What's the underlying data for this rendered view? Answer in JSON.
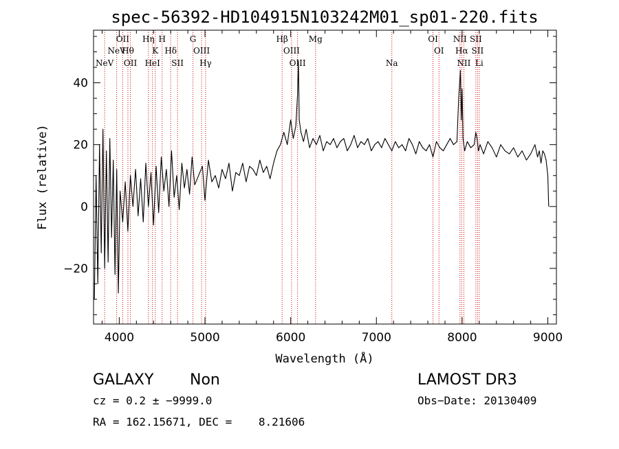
{
  "chart_data": {
    "type": "line",
    "title": "spec-56392-HD104915N103242M01_sp01-220.fits",
    "xlabel": "Wavelength (Å)",
    "ylabel": "Flux (relative)",
    "xlim": [
      3700,
      9100
    ],
    "ylim": [
      -38,
      57
    ],
    "xticks": [
      4000,
      5000,
      6000,
      7000,
      8000,
      9000
    ],
    "xtick_labels": [
      "4000",
      "5000",
      "6000",
      "7000",
      "8000",
      "9000"
    ],
    "yticks": [
      -20,
      0,
      20,
      40
    ],
    "ytick_labels": [
      "−20",
      "0",
      "20",
      "40"
    ],
    "line_color": "#000000",
    "marker_color": "#cc0000",
    "series": [
      {
        "name": "flux",
        "x": [
          3710,
          3730,
          3750,
          3770,
          3790,
          3810,
          3830,
          3850,
          3870,
          3890,
          3910,
          3930,
          3950,
          3970,
          3990,
          4010,
          4040,
          4070,
          4100,
          4130,
          4160,
          4190,
          4220,
          4250,
          4280,
          4310,
          4340,
          4370,
          4400,
          4430,
          4460,
          4490,
          4520,
          4550,
          4580,
          4610,
          4640,
          4670,
          4700,
          4730,
          4760,
          4790,
          4820,
          4850,
          4880,
          4910,
          4940,
          4970,
          5000,
          5040,
          5080,
          5120,
          5160,
          5200,
          5240,
          5280,
          5320,
          5360,
          5400,
          5440,
          5480,
          5520,
          5560,
          5600,
          5640,
          5680,
          5720,
          5760,
          5800,
          5840,
          5880,
          5920,
          5960,
          6000,
          6030,
          6060,
          6080,
          6090,
          6100,
          6120,
          6150,
          6180,
          6220,
          6260,
          6300,
          6340,
          6380,
          6420,
          6460,
          6500,
          6540,
          6580,
          6620,
          6660,
          6700,
          6740,
          6780,
          6820,
          6860,
          6900,
          6940,
          6980,
          7020,
          7060,
          7100,
          7140,
          7180,
          7220,
          7260,
          7300,
          7340,
          7380,
          7420,
          7460,
          7500,
          7540,
          7580,
          7620,
          7660,
          7700,
          7740,
          7780,
          7820,
          7860,
          7900,
          7940,
          7960,
          7980,
          7990,
          8000,
          8010,
          8030,
          8060,
          8100,
          8140,
          8160,
          8175,
          8190,
          8210,
          8250,
          8300,
          8350,
          8400,
          8450,
          8500,
          8550,
          8600,
          8650,
          8700,
          8750,
          8800,
          8850,
          8880,
          8900,
          8920,
          8940,
          8960,
          8980,
          9000,
          9010
        ],
        "values": [
          -30,
          10,
          -25,
          20,
          -15,
          25,
          -20,
          18,
          -18,
          22,
          -10,
          15,
          -22,
          12,
          -28,
          5,
          -5,
          8,
          -8,
          10,
          0,
          12,
          -3,
          9,
          -5,
          14,
          0,
          11,
          -6,
          13,
          -2,
          16,
          5,
          12,
          0,
          18,
          3,
          10,
          -1,
          14,
          6,
          12,
          4,
          16,
          7,
          9,
          11,
          13,
          2,
          15,
          8,
          10,
          6,
          12,
          9,
          14,
          5,
          11,
          10,
          14,
          8,
          13,
          12,
          10,
          15,
          11,
          13,
          9,
          14,
          18,
          20,
          24,
          20,
          28,
          22,
          26,
          36,
          47,
          28,
          24,
          21,
          25,
          19,
          22,
          20,
          23,
          18,
          21,
          20,
          22,
          19,
          21,
          22,
          18,
          20,
          23,
          19,
          21,
          20,
          22,
          18,
          20,
          21,
          19,
          22,
          20,
          18,
          21,
          19,
          20,
          18,
          22,
          20,
          17,
          21,
          19,
          18,
          20,
          16,
          21,
          19,
          18,
          20,
          22,
          20,
          21,
          35,
          44,
          28,
          38,
          22,
          18,
          21,
          19,
          20,
          24,
          22,
          18,
          20,
          17,
          21,
          19,
          16,
          20,
          18,
          17,
          19,
          16,
          18,
          15,
          17,
          20,
          16,
          18,
          14,
          18,
          17,
          15,
          10,
          0
        ]
      }
    ],
    "line_markers": [
      {
        "wl": 3830,
        "label": "NeV",
        "row": 3
      },
      {
        "wl": 3970,
        "label": "NeV",
        "row": 2
      },
      {
        "wl": 4040,
        "label": "OII",
        "row": 1
      },
      {
        "wl": 4101,
        "label": "Hθ",
        "row": 2
      },
      {
        "wl": 4130,
        "label": "OII",
        "row": 3
      },
      {
        "wl": 4341,
        "label": "Hη",
        "row": 1
      },
      {
        "wl": 4388,
        "label": "HeI",
        "row": 3
      },
      {
        "wl": 4420,
        "label": "K",
        "row": 2
      },
      {
        "wl": 4500,
        "label": "H",
        "row": 1
      },
      {
        "wl": 4600,
        "label": "Hδ",
        "row": 2
      },
      {
        "wl": 4680,
        "label": "SII",
        "row": 3
      },
      {
        "wl": 4860,
        "label": "G",
        "row": 1
      },
      {
        "wl": 4960,
        "label": "OIII",
        "row": 2
      },
      {
        "wl": 5007,
        "label": "Hγ",
        "row": 3
      },
      {
        "wl": 5900,
        "label": "Hβ",
        "row": 1
      },
      {
        "wl": 6010,
        "label": "OIII",
        "row": 2
      },
      {
        "wl": 6080,
        "label": "OIII",
        "row": 3
      },
      {
        "wl": 6290,
        "label": "Mg",
        "row": 1
      },
      {
        "wl": 7180,
        "label": "Na",
        "row": 3
      },
      {
        "wl": 7660,
        "label": "OI",
        "row": 1
      },
      {
        "wl": 7730,
        "label": "OI",
        "row": 2
      },
      {
        "wl": 7975,
        "label": "NII",
        "row": 1
      },
      {
        "wl": 7995,
        "label": "Hα",
        "row": 2
      },
      {
        "wl": 8020,
        "label": "NII",
        "row": 3
      },
      {
        "wl": 8160,
        "label": "SII",
        "row": 1
      },
      {
        "wl": 8180,
        "label": "SII",
        "row": 2
      },
      {
        "wl": 8200,
        "label": "Li",
        "row": 3
      }
    ]
  },
  "info": {
    "class": "GALAXY",
    "subclass": "Non",
    "survey": "LAMOST DR3",
    "cz": "cz = 0.2 ± −9999.0",
    "obs_date": "Obs−Date: 20130409",
    "radec": "RA = 162.15671, DEC =    8.21606"
  }
}
